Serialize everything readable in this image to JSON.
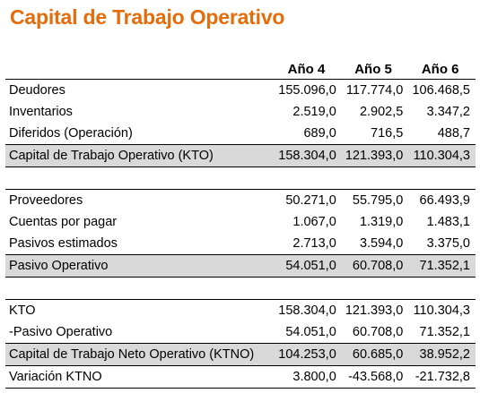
{
  "title": "Capital de Trabajo Operativo",
  "headers": [
    "Año 4",
    "Año 5",
    "Año 6"
  ],
  "section1": {
    "rows": [
      {
        "label": "Deudores",
        "values": [
          "155.096,0",
          "117.774,0",
          "106.468,5"
        ]
      },
      {
        "label": "Inventarios",
        "values": [
          "2.519,0",
          "2.902,5",
          "3.347,2"
        ]
      },
      {
        "label": "Diferidos (Operación)",
        "values": [
          "689,0",
          "716,5",
          "488,7"
        ]
      }
    ],
    "total": {
      "label": "Capital de Trabajo Operativo (KTO)",
      "values": [
        "158.304,0",
        "121.393,0",
        "110.304,3"
      ]
    }
  },
  "section2": {
    "rows": [
      {
        "label": "Proveedores",
        "values": [
          "50.271,0",
          "55.795,0",
          "66.493,9"
        ]
      },
      {
        "label": "Cuentas por pagar",
        "values": [
          "1.067,0",
          "1.319,0",
          "1.483,1"
        ]
      },
      {
        "label": "Pasivos estimados",
        "values": [
          "2.713,0",
          "3.594,0",
          "3.375,0"
        ]
      }
    ],
    "total": {
      "label": "Pasivo Operativo",
      "values": [
        "54.051,0",
        "60.708,0",
        "71.352,1"
      ]
    }
  },
  "section3": {
    "rows": [
      {
        "label": "KTO",
        "values": [
          "158.304,0",
          "121.393,0",
          "110.304,3"
        ]
      },
      {
        "label": "-Pasivo Operativo",
        "values": [
          "54.051,0",
          "60.708,0",
          "71.352,1"
        ]
      }
    ],
    "total": {
      "label": "Capital de Trabajo Neto Operativo (KTNO)",
      "values": [
        "104.253,0",
        "60.685,0",
        "38.952,2"
      ]
    },
    "variation": {
      "label": "Variación KTNO",
      "values": [
        "3.800,0",
        "-43.568,0",
        "-21.732,8"
      ]
    }
  }
}
